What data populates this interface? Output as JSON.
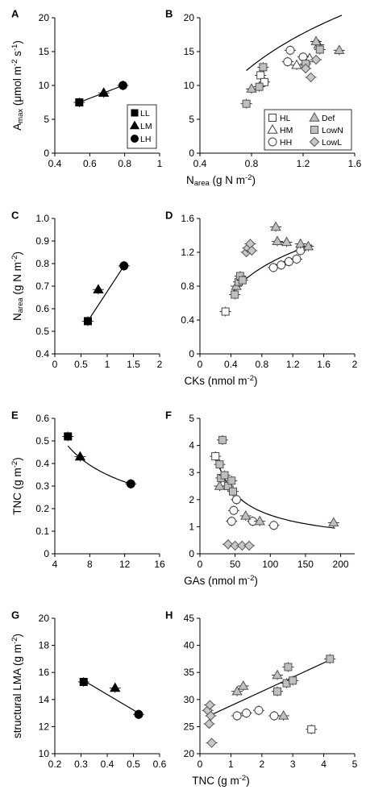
{
  "shape_styles": {
    "LL": {
      "shape": "square",
      "fill": "#000000",
      "stroke": "#000000"
    },
    "LM": {
      "shape": "triangle",
      "fill": "#000000",
      "stroke": "#000000"
    },
    "LH": {
      "shape": "circle",
      "fill": "#000000",
      "stroke": "#000000"
    },
    "HL": {
      "shape": "square",
      "fill": "#ffffff",
      "stroke": "#444444"
    },
    "HM": {
      "shape": "triangle",
      "fill": "#ffffff",
      "stroke": "#444444"
    },
    "HH": {
      "shape": "circle",
      "fill": "#ffffff",
      "stroke": "#444444"
    },
    "Def": {
      "shape": "triangle",
      "fill": "#bfbfbf",
      "stroke": "#555555"
    },
    "LowN": {
      "shape": "square",
      "fill": "#bfbfbf",
      "stroke": "#555555"
    },
    "LowL": {
      "shape": "diamond",
      "fill": "#c8c8c8",
      "stroke": "#555555"
    }
  },
  "chart_data": [
    {
      "id": "A",
      "panel_label": "A",
      "type": "scatter",
      "xlim": [
        0.4,
        1.0
      ],
      "ylim": [
        0,
        20
      ],
      "xticks": [
        "0.4",
        "0.6",
        "0.8",
        "1"
      ],
      "yticks": [
        "0",
        "5",
        "10",
        "15",
        "20"
      ],
      "ylabel_main": "A",
      "ylabel_sub": "max",
      "ylabel_rest": " (μmol m",
      "ylabel_sup1": "-2",
      "ylabel_mid": " s",
      "ylabel_sup2": "-1",
      "ylabel_end": ")",
      "series": [
        {
          "name": "LL",
          "points": [
            {
              "x": 0.54,
              "y": 7.5
            }
          ]
        },
        {
          "name": "LM",
          "points": [
            {
              "x": 0.68,
              "y": 8.9
            }
          ]
        },
        {
          "name": "LH",
          "points": [
            {
              "x": 0.79,
              "y": 10.0
            }
          ]
        }
      ],
      "fit": {
        "kind": "line",
        "from": [
          0.54,
          7.5
        ],
        "to": [
          0.79,
          10.0
        ]
      },
      "legend": {
        "position": "bottom-right",
        "entries": [
          "LL",
          "LM",
          "LH"
        ]
      }
    },
    {
      "id": "B",
      "panel_label": "B",
      "type": "scatter",
      "xlim": [
        0.4,
        1.6
      ],
      "ylim": [
        0,
        20
      ],
      "xticks": [
        "0.4",
        "0.8",
        "1.2",
        "1.6"
      ],
      "yticks": [
        "0",
        "5",
        "10",
        "15",
        "20"
      ],
      "xlabel_main": "N",
      "xlabel_sub": "area",
      "xlabel_rest": " (g N m",
      "xlabel_sup": "-2",
      "xlabel_end": ")",
      "series": [
        {
          "name": "HL",
          "points": [
            {
              "x": 0.87,
              "y": 11.5
            },
            {
              "x": 0.9,
              "y": 10.5
            }
          ]
        },
        {
          "name": "HM",
          "points": [
            {
              "x": 1.15,
              "y": 13.0
            },
            {
              "x": 1.25,
              "y": 14.0
            },
            {
              "x": 1.32,
              "y": 16.0
            }
          ]
        },
        {
          "name": "HH",
          "points": [
            {
              "x": 1.08,
              "y": 13.5
            },
            {
              "x": 1.1,
              "y": 15.2
            },
            {
              "x": 1.2,
              "y": 14.2
            }
          ]
        },
        {
          "name": "Def",
          "points": [
            {
              "x": 0.8,
              "y": 9.5
            },
            {
              "x": 1.3,
              "y": 16.5
            },
            {
              "x": 1.48,
              "y": 15.2
            }
          ]
        },
        {
          "name": "LowN",
          "points": [
            {
              "x": 0.76,
              "y": 7.3
            },
            {
              "x": 0.86,
              "y": 9.8
            },
            {
              "x": 0.89,
              "y": 12.7
            },
            {
              "x": 1.22,
              "y": 13.2
            },
            {
              "x": 1.33,
              "y": 15.3
            }
          ]
        },
        {
          "name": "LowL",
          "points": [
            {
              "x": 1.22,
              "y": 12.5
            },
            {
              "x": 1.26,
              "y": 11.2
            },
            {
              "x": 1.3,
              "y": 13.8
            }
          ]
        }
      ],
      "fit": {
        "kind": "log",
        "xrange": [
          0.76,
          1.5
        ],
        "a": 15.5,
        "b": 12.0
      },
      "legend": {
        "position": "bottom-right",
        "entries": [
          "HL",
          "Def",
          "HM",
          "LowN",
          "HH",
          "LowL"
        ]
      }
    },
    {
      "id": "C",
      "panel_label": "C",
      "type": "scatter",
      "xlim": [
        0,
        2
      ],
      "ylim": [
        0.4,
        1.0
      ],
      "xticks": [
        "0",
        "0.5",
        "1",
        "1.5",
        "2"
      ],
      "yticks": [
        "0.4",
        "0.5",
        "0.6",
        "0.7",
        "0.8",
        "0.9",
        "1.0"
      ],
      "ylabel_main": "N",
      "ylabel_sub": "area",
      "ylabel_rest": " (g N m",
      "ylabel_sup": "-2",
      "ylabel_end": ")",
      "series": [
        {
          "name": "LL",
          "points": [
            {
              "x": 0.63,
              "y": 0.545
            }
          ]
        },
        {
          "name": "LM",
          "points": [
            {
              "x": 0.83,
              "y": 0.685
            }
          ]
        },
        {
          "name": "LH",
          "points": [
            {
              "x": 1.32,
              "y": 0.79
            }
          ]
        }
      ],
      "fit": {
        "kind": "line",
        "from": [
          0.63,
          0.545
        ],
        "to": [
          1.32,
          0.79
        ]
      }
    },
    {
      "id": "D",
      "panel_label": "D",
      "type": "scatter",
      "xlim": [
        0,
        2
      ],
      "ylim": [
        0,
        1.6
      ],
      "xticks": [
        "0",
        "0.4",
        "0.8",
        "1.2",
        "1.6",
        "2"
      ],
      "yticks": [
        "0",
        "0.4",
        "0.8",
        "1.2",
        "1.6"
      ],
      "xlabel_main": "CKs (nmol m",
      "xlabel_sup": "-2",
      "xlabel_end": ")",
      "series": [
        {
          "name": "HL",
          "points": [
            {
              "x": 0.33,
              "y": 0.5
            }
          ]
        },
        {
          "name": "HH",
          "points": [
            {
              "x": 0.95,
              "y": 1.02
            },
            {
              "x": 1.05,
              "y": 1.05
            },
            {
              "x": 1.15,
              "y": 1.09
            },
            {
              "x": 1.25,
              "y": 1.12
            },
            {
              "x": 1.3,
              "y": 1.22
            }
          ]
        },
        {
          "name": "Def",
          "points": [
            {
              "x": 0.47,
              "y": 0.8
            },
            {
              "x": 0.98,
              "y": 1.5
            },
            {
              "x": 1.0,
              "y": 1.33
            },
            {
              "x": 1.12,
              "y": 1.32
            },
            {
              "x": 1.3,
              "y": 1.3
            },
            {
              "x": 1.4,
              "y": 1.27
            }
          ]
        },
        {
          "name": "LowN",
          "points": [
            {
              "x": 0.45,
              "y": 0.7
            },
            {
              "x": 0.5,
              "y": 0.85
            },
            {
              "x": 0.52,
              "y": 0.92
            },
            {
              "x": 0.55,
              "y": 0.87
            }
          ]
        },
        {
          "name": "LowL",
          "points": [
            {
              "x": 0.6,
              "y": 1.2
            },
            {
              "x": 0.62,
              "y": 1.25
            },
            {
              "x": 0.65,
              "y": 1.3
            },
            {
              "x": 0.67,
              "y": 1.22
            }
          ]
        }
      ],
      "fit": {
        "kind": "log",
        "xrange": [
          0.42,
          1.45
        ],
        "a": 1.12,
        "b": 0.45
      }
    },
    {
      "id": "E",
      "panel_label": "E",
      "type": "scatter",
      "xlim": [
        4,
        16
      ],
      "ylim": [
        0,
        0.6
      ],
      "xticks": [
        "4",
        "8",
        "12",
        "16"
      ],
      "yticks": [
        "0",
        "0.1",
        "0.2",
        "0.3",
        "0.4",
        "0.5",
        "0.6"
      ],
      "ylabel_main": "TNC (g m",
      "ylabel_sup": "-2",
      "ylabel_end": ")",
      "series": [
        {
          "name": "LL",
          "points": [
            {
              "x": 5.5,
              "y": 0.52
            }
          ]
        },
        {
          "name": "LM",
          "points": [
            {
              "x": 6.9,
              "y": 0.43
            }
          ]
        },
        {
          "name": "LH",
          "points": [
            {
              "x": 12.7,
              "y": 0.31
            }
          ]
        }
      ],
      "fit": {
        "kind": "power",
        "xrange": [
          5.5,
          12.7
        ],
        "c": 1.16,
        "p": -0.52
      }
    },
    {
      "id": "F",
      "panel_label": "F",
      "type": "scatter",
      "xlim": [
        0,
        220
      ],
      "ylim": [
        0,
        5
      ],
      "xticks": [
        "0",
        "50",
        "100",
        "150",
        "200"
      ],
      "yticks": [
        "0",
        "1",
        "2",
        "3",
        "4",
        "5"
      ],
      "xlabel_main": "GAs (nmol m",
      "xlabel_sup": "-2",
      "xlabel_end": ")",
      "series": [
        {
          "name": "HL",
          "points": [
            {
              "x": 22,
              "y": 3.6
            }
          ]
        },
        {
          "name": "HH",
          "points": [
            {
              "x": 45,
              "y": 1.2
            },
            {
              "x": 48,
              "y": 1.6
            },
            {
              "x": 52,
              "y": 2.0
            },
            {
              "x": 75,
              "y": 1.2
            },
            {
              "x": 105,
              "y": 1.05
            }
          ]
        },
        {
          "name": "Def",
          "points": [
            {
              "x": 28,
              "y": 2.5
            },
            {
              "x": 65,
              "y": 1.4
            },
            {
              "x": 85,
              "y": 1.2
            },
            {
              "x": 190,
              "y": 1.15
            }
          ]
        },
        {
          "name": "LowN",
          "points": [
            {
              "x": 28,
              "y": 3.3
            },
            {
              "x": 30,
              "y": 2.8
            },
            {
              "x": 32,
              "y": 4.2
            },
            {
              "x": 35,
              "y": 2.9
            },
            {
              "x": 40,
              "y": 2.5
            },
            {
              "x": 45,
              "y": 2.7
            },
            {
              "x": 47,
              "y": 2.3
            }
          ]
        },
        {
          "name": "LowL",
          "points": [
            {
              "x": 40,
              "y": 0.35
            },
            {
              "x": 50,
              "y": 0.3
            },
            {
              "x": 60,
              "y": 0.3
            },
            {
              "x": 70,
              "y": 0.3
            }
          ]
        }
      ],
      "fit": {
        "kind": "power",
        "xrange": [
          22,
          192
        ],
        "c": 26.0,
        "p": -0.63
      }
    },
    {
      "id": "G",
      "panel_label": "G",
      "type": "scatter",
      "xlim": [
        0.2,
        0.6
      ],
      "ylim": [
        10,
        20
      ],
      "xticks": [
        "0.2",
        "0.3",
        "0.4",
        "0.5",
        "0.6"
      ],
      "yticks": [
        "10",
        "12",
        "14",
        "16",
        "18",
        "20"
      ],
      "ylabel_main": "structural LMA (g m",
      "ylabel_sup": "-2",
      "ylabel_end": ")",
      "series": [
        {
          "name": "LL",
          "points": [
            {
              "x": 0.31,
              "y": 15.3
            }
          ]
        },
        {
          "name": "LM",
          "points": [
            {
              "x": 0.43,
              "y": 14.85
            }
          ]
        },
        {
          "name": "LH",
          "points": [
            {
              "x": 0.52,
              "y": 12.9
            }
          ]
        }
      ],
      "fit": {
        "kind": "line",
        "from": [
          0.31,
          15.4
        ],
        "to": [
          0.52,
          13.0
        ]
      }
    },
    {
      "id": "H",
      "panel_label": "H",
      "type": "scatter",
      "xlim": [
        0,
        5
      ],
      "ylim": [
        20,
        45
      ],
      "xticks": [
        "0",
        "1",
        "2",
        "3",
        "4",
        "5"
      ],
      "yticks": [
        "20",
        "25",
        "30",
        "35",
        "40",
        "45"
      ],
      "xlabel_main": "TNC (g m",
      "xlabel_sup": "-2",
      "xlabel_end": ")",
      "series": [
        {
          "name": "HL",
          "points": [
            {
              "x": 3.6,
              "y": 24.5
            }
          ]
        },
        {
          "name": "HH",
          "points": [
            {
              "x": 1.2,
              "y": 27.0
            },
            {
              "x": 1.5,
              "y": 27.5
            },
            {
              "x": 1.9,
              "y": 28.0
            },
            {
              "x": 2.4,
              "y": 27.0
            }
          ]
        },
        {
          "name": "Def",
          "points": [
            {
              "x": 1.2,
              "y": 31.5
            },
            {
              "x": 1.4,
              "y": 32.5
            },
            {
              "x": 2.5,
              "y": 34.5
            },
            {
              "x": 2.7,
              "y": 27.0
            }
          ]
        },
        {
          "name": "LowN",
          "points": [
            {
              "x": 2.5,
              "y": 31.5
            },
            {
              "x": 2.8,
              "y": 33.0
            },
            {
              "x": 2.85,
              "y": 36.0
            },
            {
              "x": 3.0,
              "y": 33.5
            },
            {
              "x": 4.2,
              "y": 37.5
            }
          ]
        },
        {
          "name": "LowL",
          "points": [
            {
              "x": 0.25,
              "y": 28.0
            },
            {
              "x": 0.3,
              "y": 25.5
            },
            {
              "x": 0.32,
              "y": 29.0
            },
            {
              "x": 0.35,
              "y": 27.0
            },
            {
              "x": 0.38,
              "y": 22.0
            }
          ]
        }
      ],
      "fit": {
        "kind": "line",
        "from": [
          0.3,
          27.0
        ],
        "to": [
          4.2,
          37.3
        ]
      }
    }
  ]
}
